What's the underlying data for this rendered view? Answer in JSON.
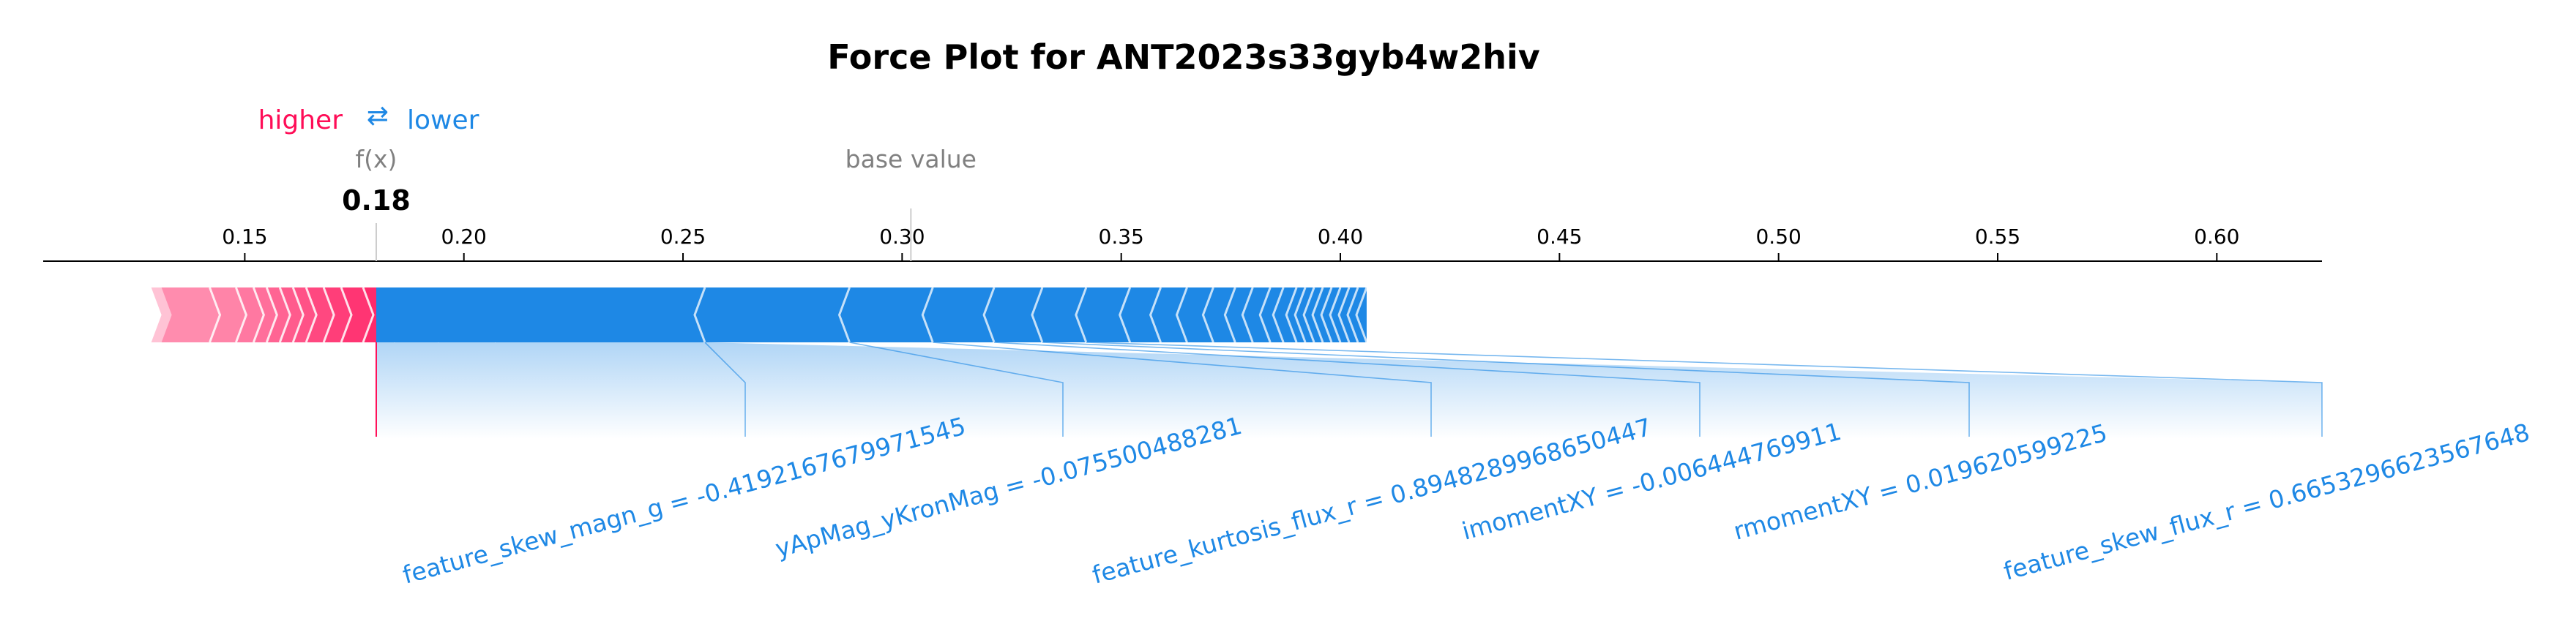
{
  "chart_data": {
    "type": "force",
    "title": "Force Plot for ANT2023s33gyb4w2hiv",
    "legend": {
      "higher": "higher",
      "arrow": "⇄",
      "lower": "lower",
      "placement": "top-left"
    },
    "fx_label": "f(x)",
    "fx_value": 0.18,
    "fx_value_text": "0.18",
    "base_value_label": "base value",
    "base_value": 0.302,
    "xlim": [
      0.104,
      0.624
    ],
    "x_ticks": [
      0.15,
      0.2,
      0.25,
      0.3,
      0.35,
      0.4,
      0.45,
      0.5,
      0.55,
      0.6
    ],
    "x_tick_labels": [
      "0.15",
      "0.20",
      "0.25",
      "0.30",
      "0.35",
      "0.40",
      "0.45",
      "0.50",
      "0.55",
      "0.60"
    ],
    "colors": {
      "positive": "#ff0d57",
      "negative": "#1e88e5",
      "positive_light": "#ffc3d5",
      "negative_light": "#d1e6fa"
    },
    "positive_boundaries": [
      0.131,
      0.142,
      0.148,
      0.152,
      0.155,
      0.158,
      0.161,
      0.164,
      0.168,
      0.172,
      0.177,
      0.184,
      0.194,
      0.207,
      0.22
    ],
    "negative_boundaries": [
      0.22,
      0.255,
      0.288,
      0.307,
      0.321,
      0.332,
      0.342,
      0.352,
      0.359,
      0.365,
      0.371,
      0.376,
      0.38,
      0.384,
      0.387,
      0.39,
      0.392,
      0.394,
      0.396,
      0.398,
      0.4,
      0.402,
      0.404,
      0.406
    ],
    "negative_extent": 0.351,
    "features": [
      {
        "label": "feature_skew_magn_g = -0.4192167679971545"
      },
      {
        "label": "yApMag_yKronMag = -0.075500488281"
      },
      {
        "label": "feature_kurtosis_flux_r = 0.8948289968650447"
      },
      {
        "label": "imomentXY = -0.006444769911"
      },
      {
        "label": "rmomentXY = 0.019620599225"
      },
      {
        "label": "feature_skew_flux_r = 0.6653296623567648"
      }
    ]
  }
}
